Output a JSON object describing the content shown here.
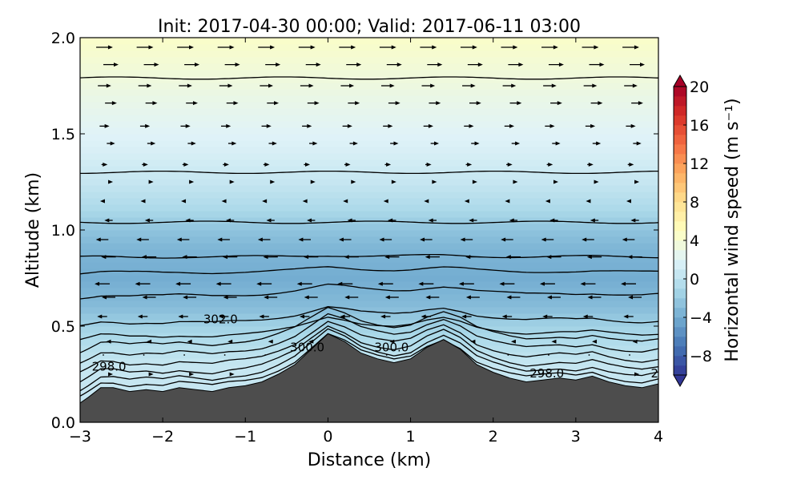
{
  "chart_data": {
    "type": "heatmap",
    "title": "Init: 2017-04-30 00:00; Valid: 2017-06-11 03:00",
    "xlabel": "Distance (km)",
    "ylabel": "Altitude (km)",
    "xlim": [
      -3,
      4
    ],
    "ylim": [
      0.0,
      2.0
    ],
    "xticks": [
      "−3",
      "−2",
      "−1",
      "0",
      "1",
      "2",
      "3",
      "4"
    ],
    "xtick_values": [
      -3,
      -2,
      -1,
      0,
      1,
      2,
      3,
      4
    ],
    "yticks": [
      "0.0",
      "0.5",
      "1.0",
      "1.5",
      "2.0"
    ],
    "ytick_values": [
      0.0,
      0.5,
      1.0,
      1.5,
      2.0
    ],
    "colorbar": {
      "label": "Horizontal wind speed (m s⁻¹)",
      "range": [
        -10,
        20
      ],
      "ticks": [
        "−8",
        "−4",
        "0",
        "4",
        "8",
        "12",
        "16",
        "20"
      ],
      "tick_values": [
        -8,
        -4,
        0,
        4,
        8,
        12,
        16,
        20
      ],
      "colormap": "RdYlBu_r",
      "extend": "both"
    },
    "wind_speed_profile": {
      "altitude_km": [
        0.1,
        0.3,
        0.5,
        0.6,
        0.75,
        0.9,
        1.0,
        1.1,
        1.25,
        1.4,
        1.6,
        1.8,
        2.0
      ],
      "speed_ms": [
        0.5,
        0.5,
        -1.5,
        -3.0,
        -4.0,
        -3.5,
        -2.5,
        -1.0,
        0.5,
        1.5,
        2.5,
        3.5,
        4.5
      ]
    },
    "terrain": {
      "x_km": [
        -3,
        -2.9,
        -2.75,
        -2.6,
        -2.4,
        -2.2,
        -2.0,
        -1.8,
        -1.6,
        -1.4,
        -1.2,
        -1.0,
        -0.8,
        -0.6,
        -0.4,
        -0.2,
        0.0,
        0.2,
        0.4,
        0.6,
        0.8,
        1.0,
        1.2,
        1.4,
        1.6,
        1.8,
        2.0,
        2.2,
        2.4,
        2.6,
        2.8,
        3.0,
        3.2,
        3.4,
        3.6,
        3.8,
        4.0
      ],
      "altitude_km": [
        0.1,
        0.13,
        0.18,
        0.18,
        0.16,
        0.17,
        0.16,
        0.18,
        0.17,
        0.16,
        0.18,
        0.19,
        0.21,
        0.25,
        0.3,
        0.38,
        0.46,
        0.42,
        0.36,
        0.33,
        0.31,
        0.33,
        0.39,
        0.43,
        0.38,
        0.3,
        0.26,
        0.23,
        0.21,
        0.22,
        0.23,
        0.22,
        0.24,
        0.21,
        0.19,
        0.18,
        0.2
      ]
    },
    "isentropes_km": [
      0.2,
      0.23,
      0.265,
      0.31,
      0.36,
      0.41,
      0.45,
      0.52,
      0.66,
      0.78,
      0.86,
      1.04,
      1.3,
      1.79
    ],
    "contour_labels": [
      {
        "text": "302.0",
        "x": -1.3,
        "y": 0.535
      },
      {
        "text": "300.0",
        "x": -0.25,
        "y": 0.39
      },
      {
        "text": "300.0",
        "x": 0.77,
        "y": 0.39
      },
      {
        "text": "298.0",
        "x": -2.65,
        "y": 0.29
      },
      {
        "text": "298.0",
        "x": 2.65,
        "y": 0.255
      },
      {
        "text": "29",
        "x": 4.0,
        "y": 0.255
      }
    ]
  }
}
